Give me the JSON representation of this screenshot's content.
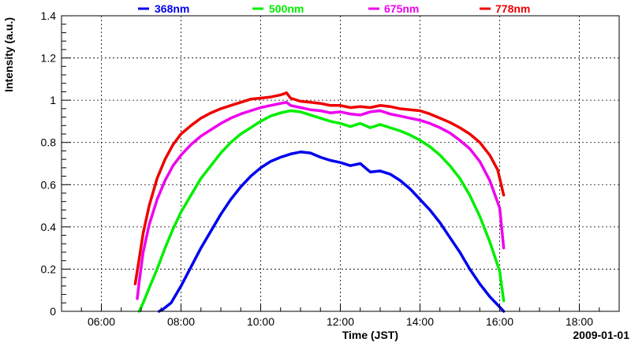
{
  "chart_data": {
    "type": "line",
    "title": "",
    "xlabel": "Time (JST)",
    "ylabel": "Intensity (a.u.)",
    "date_label": "2009-01-01",
    "xlim": [
      5.0,
      19.0
    ],
    "ylim": [
      0,
      1.4
    ],
    "x_ticks": [
      6,
      8,
      10,
      12,
      14,
      16,
      18
    ],
    "x_tick_labels": [
      "06:00",
      "08:00",
      "10:00",
      "12:00",
      "14:00",
      "16:00",
      "18:00"
    ],
    "y_ticks": [
      0,
      0.2,
      0.4,
      0.6,
      0.8,
      1.0,
      1.2,
      1.4
    ],
    "y_tick_labels": [
      "0",
      "0.2",
      "0.4",
      "0.6",
      "0.8",
      "1",
      "1.2",
      "1.4"
    ],
    "grid": true,
    "legend_position": "top",
    "series": [
      {
        "name": "368nm",
        "color": "#0000ee",
        "x": [
          7.45,
          7.55,
          7.75,
          8.0,
          8.25,
          8.5,
          8.75,
          9.0,
          9.25,
          9.5,
          9.75,
          10.0,
          10.25,
          10.5,
          10.75,
          11.0,
          11.25,
          11.5,
          11.75,
          12.0,
          12.25,
          12.5,
          12.75,
          13.0,
          13.25,
          13.5,
          13.75,
          14.0,
          14.25,
          14.5,
          14.75,
          15.0,
          15.25,
          15.5,
          15.75,
          16.0,
          16.1
        ],
        "values": [
          0.0,
          0.01,
          0.04,
          0.12,
          0.21,
          0.3,
          0.38,
          0.46,
          0.53,
          0.59,
          0.64,
          0.68,
          0.71,
          0.73,
          0.745,
          0.755,
          0.75,
          0.73,
          0.715,
          0.705,
          0.69,
          0.7,
          0.66,
          0.665,
          0.65,
          0.62,
          0.58,
          0.53,
          0.48,
          0.42,
          0.35,
          0.28,
          0.2,
          0.13,
          0.07,
          0.02,
          0.0
        ]
      },
      {
        "name": "500nm",
        "color": "#00ee00",
        "x": [
          6.95,
          7.05,
          7.2,
          7.4,
          7.6,
          7.8,
          8.0,
          8.25,
          8.5,
          8.75,
          9.0,
          9.25,
          9.5,
          9.75,
          10.0,
          10.25,
          10.5,
          10.75,
          11.0,
          11.25,
          11.5,
          11.75,
          12.0,
          12.25,
          12.5,
          12.75,
          13.0,
          13.25,
          13.5,
          13.75,
          14.0,
          14.25,
          14.5,
          14.75,
          15.0,
          15.25,
          15.5,
          15.75,
          16.0,
          16.1
        ],
        "values": [
          0.0,
          0.04,
          0.11,
          0.2,
          0.3,
          0.39,
          0.47,
          0.55,
          0.63,
          0.69,
          0.75,
          0.8,
          0.84,
          0.87,
          0.9,
          0.925,
          0.94,
          0.95,
          0.945,
          0.93,
          0.915,
          0.9,
          0.89,
          0.875,
          0.89,
          0.87,
          0.885,
          0.87,
          0.855,
          0.835,
          0.81,
          0.78,
          0.74,
          0.69,
          0.63,
          0.55,
          0.45,
          0.33,
          0.19,
          0.05
        ]
      },
      {
        "name": "675nm",
        "color": "#ee00ee",
        "x": [
          6.9,
          6.95,
          7.05,
          7.2,
          7.4,
          7.6,
          7.8,
          8.0,
          8.25,
          8.5,
          8.75,
          9.0,
          9.25,
          9.5,
          9.75,
          10.0,
          10.25,
          10.5,
          10.65,
          10.75,
          11.0,
          11.25,
          11.5,
          11.75,
          12.0,
          12.25,
          12.5,
          12.75,
          13.0,
          13.25,
          13.5,
          13.75,
          14.0,
          14.25,
          14.5,
          14.75,
          15.0,
          15.25,
          15.5,
          15.75,
          16.0,
          16.1
        ],
        "values": [
          0.06,
          0.14,
          0.28,
          0.41,
          0.53,
          0.62,
          0.69,
          0.74,
          0.79,
          0.83,
          0.86,
          0.89,
          0.915,
          0.935,
          0.95,
          0.965,
          0.975,
          0.985,
          0.99,
          0.975,
          0.965,
          0.955,
          0.95,
          0.94,
          0.945,
          0.935,
          0.93,
          0.945,
          0.95,
          0.935,
          0.925,
          0.915,
          0.905,
          0.89,
          0.87,
          0.845,
          0.81,
          0.77,
          0.71,
          0.62,
          0.49,
          0.3
        ]
      },
      {
        "name": "778nm",
        "color": "#ee0000",
        "x": [
          6.85,
          6.95,
          7.05,
          7.2,
          7.4,
          7.6,
          7.8,
          8.0,
          8.25,
          8.5,
          8.75,
          9.0,
          9.25,
          9.5,
          9.75,
          10.0,
          10.25,
          10.5,
          10.65,
          10.75,
          11.0,
          11.25,
          11.5,
          11.75,
          12.0,
          12.25,
          12.5,
          12.75,
          13.0,
          13.25,
          13.5,
          13.75,
          14.0,
          14.25,
          14.5,
          14.75,
          15.0,
          15.25,
          15.5,
          15.75,
          15.95,
          16.1
        ],
        "values": [
          0.13,
          0.25,
          0.37,
          0.5,
          0.63,
          0.72,
          0.79,
          0.84,
          0.88,
          0.915,
          0.94,
          0.96,
          0.975,
          0.99,
          1.005,
          1.01,
          1.015,
          1.025,
          1.035,
          1.01,
          0.995,
          0.99,
          0.985,
          0.975,
          0.975,
          0.965,
          0.97,
          0.965,
          0.975,
          0.97,
          0.96,
          0.955,
          0.95,
          0.935,
          0.915,
          0.895,
          0.87,
          0.84,
          0.8,
          0.74,
          0.67,
          0.55
        ]
      }
    ]
  }
}
